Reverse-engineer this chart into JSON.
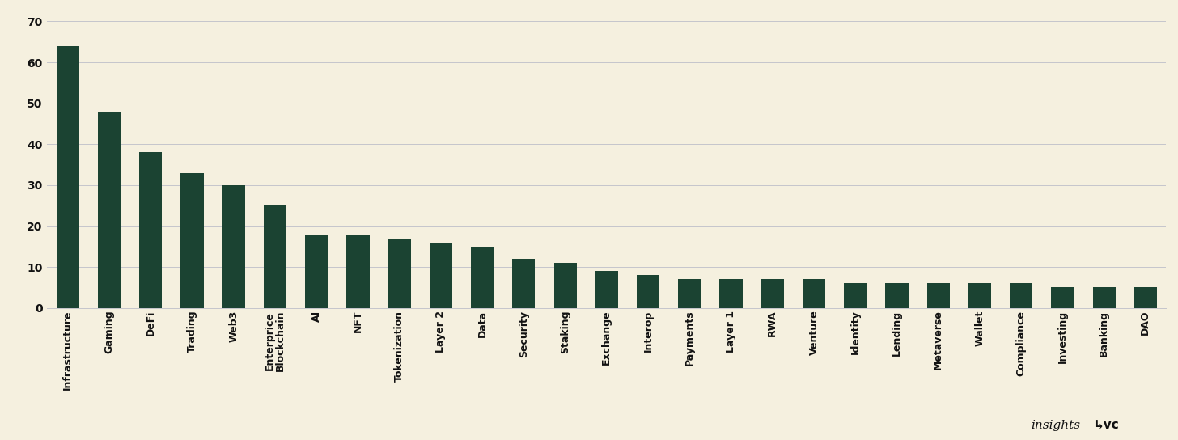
{
  "categories": [
    "Infrastructure",
    "Gaming",
    "DeFi",
    "Trading",
    "Web3",
    "Enterprice\nBlockchain",
    "AI",
    "NFT",
    "Tokenization",
    "Layer 2",
    "Data",
    "Security",
    "Staking",
    "Exchange",
    "Interop",
    "Payments",
    "Layer 1",
    "RWA",
    "Venture",
    "Identity",
    "Lending",
    "Metaverse",
    "Wallet",
    "Compliance",
    "Investing",
    "Banking",
    "DAO"
  ],
  "values": [
    64,
    48,
    38,
    33,
    30,
    25,
    18,
    18,
    17,
    16,
    15,
    12,
    11,
    9,
    8,
    7,
    7,
    7,
    7,
    6,
    6,
    6,
    6,
    6,
    5,
    5,
    5
  ],
  "bar_color": "#1b4332",
  "background_color": "#f5f0df",
  "yticks": [
    0,
    10,
    20,
    30,
    40,
    50,
    60,
    70
  ],
  "ylim": [
    0,
    72
  ],
  "grid_color": "#c5c5cc",
  "tick_fontsize": 10,
  "label_fontsize": 9,
  "bar_width": 0.55
}
